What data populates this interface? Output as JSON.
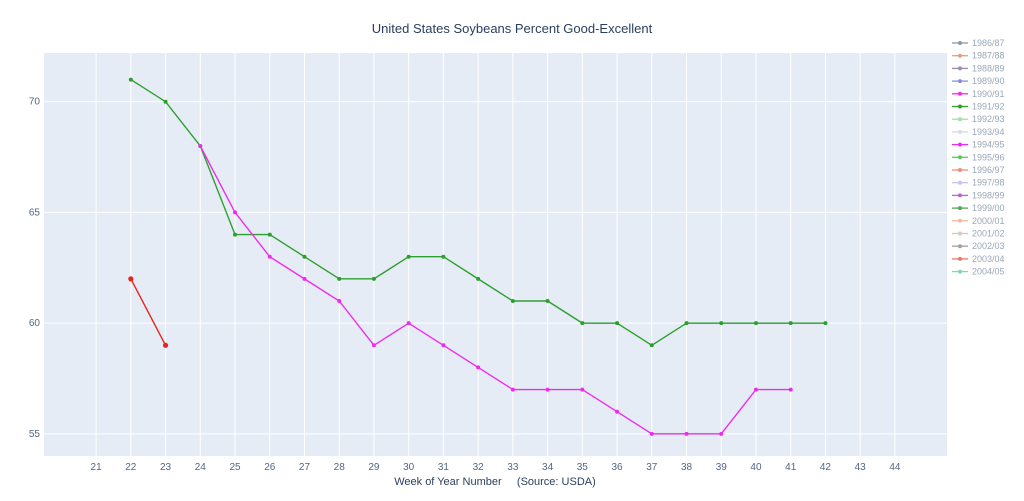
{
  "chart_data": {
    "type": "line",
    "title": "United States Soybeans Percent Good-Excellent",
    "xlabel": "Week of Year Number     (Source: USDA)",
    "ylabel": "",
    "xlim": [
      19.5,
      45.5
    ],
    "ylim": [
      54,
      72.2
    ],
    "x_ticks": [
      21,
      22,
      23,
      24,
      25,
      26,
      27,
      28,
      29,
      30,
      31,
      32,
      33,
      34,
      35,
      36,
      37,
      38,
      39,
      40,
      41,
      42,
      43,
      44
    ],
    "y_ticks": [
      55,
      60,
      65,
      70
    ],
    "grid": true,
    "legend_position": "right",
    "series": [
      {
        "color": "#2ca02c",
        "x": [
          22,
          23,
          24,
          25,
          26,
          27,
          28,
          29,
          30,
          31,
          32,
          33,
          34,
          35,
          36,
          37,
          38,
          39,
          40,
          41,
          42
        ],
        "y": [
          71,
          70,
          68,
          64,
          64,
          63,
          62,
          62,
          63,
          63,
          62,
          61,
          61,
          60,
          60,
          59,
          60,
          60,
          60,
          60,
          60
        ]
      },
      {
        "color": "#ee2cee",
        "x": [
          24,
          25,
          26,
          27,
          28,
          29,
          30,
          31,
          32,
          33,
          34,
          35,
          36,
          37,
          38,
          39,
          40,
          41
        ],
        "y": [
          68,
          65,
          63,
          62,
          61,
          59,
          60,
          59,
          58,
          57,
          57,
          57,
          56,
          55,
          55,
          55,
          57,
          57
        ]
      },
      {
        "color": "#e8241e",
        "x": [
          22,
          23
        ],
        "y": [
          62,
          59
        ]
      }
    ]
  },
  "legend": {
    "items": [
      {
        "label": "1986/87",
        "color": "#8c9aa8"
      },
      {
        "label": "1987/88",
        "color": "#e89c7a"
      },
      {
        "label": "1988/89",
        "color": "#a08ab0"
      },
      {
        "label": "1989/90",
        "color": "#8a8fd8"
      },
      {
        "label": "1990/91",
        "color": "#ee2cee"
      },
      {
        "label": "1991/92",
        "color": "#2ca02c"
      },
      {
        "label": "1992/93",
        "color": "#9be39b"
      },
      {
        "label": "1993/94",
        "color": "#d5dbe8"
      },
      {
        "label": "1994/95",
        "color": "#ee2cee"
      },
      {
        "label": "1995/96",
        "color": "#5cc85c"
      },
      {
        "label": "1996/97",
        "color": "#f08a7a"
      },
      {
        "label": "1997/98",
        "color": "#c8c0f0"
      },
      {
        "label": "1998/99",
        "color": "#c060d8"
      },
      {
        "label": "1999/00",
        "color": "#5aa05a"
      },
      {
        "label": "2000/01",
        "color": "#f0b8a0"
      },
      {
        "label": "2001/02",
        "color": "#d8c8b8"
      },
      {
        "label": "2002/03",
        "color": "#a0a0a0"
      },
      {
        "label": "2003/04",
        "color": "#e87860"
      },
      {
        "label": "2004/05",
        "color": "#7ed8b8"
      }
    ]
  }
}
